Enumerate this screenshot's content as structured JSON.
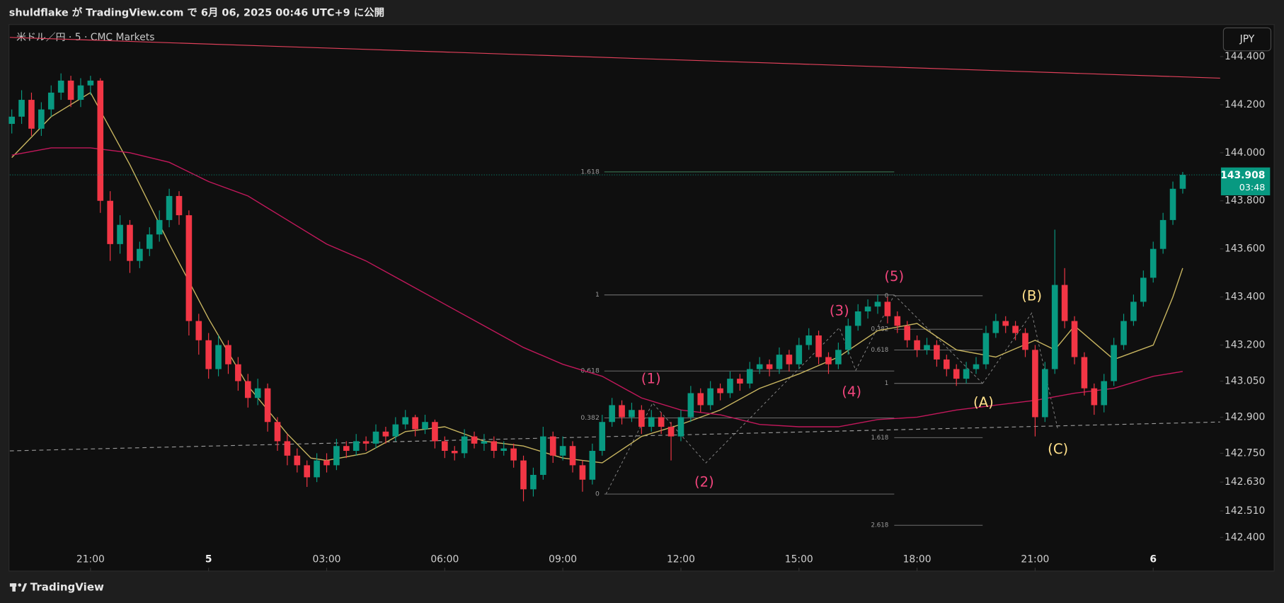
{
  "header": {
    "title": "shuldflake が TradingView.com で 6月 06, 2025 00:46 UTC+9 に公開"
  },
  "footer": {
    "brand": "TradingView"
  },
  "chart_data": {
    "type": "candlestick",
    "symbol": "米ドル／円 · 5 · CMC Markets",
    "currency": "JPY",
    "countdown": "03:48",
    "up_color": "#089981",
    "down_color": "#f23645",
    "xlim": [
      18.95,
      49.7
    ],
    "ylim": [
      142.26,
      144.533
    ],
    "xticks": [
      {
        "value": 21,
        "label": "21:00"
      },
      {
        "value": 24,
        "label": "5"
      },
      {
        "value": 27,
        "label": "03:00"
      },
      {
        "value": 30,
        "label": "06:00"
      },
      {
        "value": 33,
        "label": "09:00"
      },
      {
        "value": 36,
        "label": "12:00"
      },
      {
        "value": 39,
        "label": "15:00"
      },
      {
        "value": 42,
        "label": "18:00"
      },
      {
        "value": 45,
        "label": "21:00"
      },
      {
        "value": 48,
        "label": "6"
      }
    ],
    "yticks": [
      {
        "value": 144.4,
        "label": "144.400"
      },
      {
        "value": 144.2,
        "label": "144.200"
      },
      {
        "value": 144.0,
        "label": "144.000"
      },
      {
        "value": 143.8,
        "label": "143.800"
      },
      {
        "value": 143.6,
        "label": "143.600"
      },
      {
        "value": 143.4,
        "label": "143.400"
      },
      {
        "value": 143.2,
        "label": "143.200"
      },
      {
        "value": 143.05,
        "label": "143.050"
      },
      {
        "value": 142.9,
        "label": "142.900"
      },
      {
        "value": 142.75,
        "label": "142.750"
      },
      {
        "value": 142.63,
        "label": "142.630"
      },
      {
        "value": 142.51,
        "label": "142.510"
      },
      {
        "value": 142.4,
        "label": "142.400"
      }
    ],
    "x": [
      19,
      19.25,
      19.5,
      19.75,
      20,
      20.25,
      20.5,
      20.75,
      21,
      21.25,
      21.5,
      21.75,
      22,
      22.25,
      22.5,
      22.75,
      23,
      23.25,
      23.5,
      23.75,
      24,
      24.25,
      24.5,
      24.75,
      25,
      25.25,
      25.5,
      25.75,
      26,
      26.25,
      26.5,
      26.75,
      27,
      27.25,
      27.5,
      27.75,
      28,
      28.25,
      28.5,
      28.75,
      29,
      29.25,
      29.5,
      29.75,
      30,
      30.25,
      30.5,
      30.75,
      31,
      31.25,
      31.5,
      31.75,
      32,
      32.25,
      32.5,
      32.75,
      33,
      33.25,
      33.5,
      33.75,
      34,
      34.25,
      34.5,
      34.75,
      35,
      35.25,
      35.5,
      35.75,
      36,
      36.25,
      36.5,
      36.75,
      37,
      37.25,
      37.5,
      37.75,
      38,
      38.25,
      38.5,
      38.75,
      39,
      39.25,
      39.5,
      39.75,
      40,
      40.25,
      40.5,
      40.75,
      41,
      41.25,
      41.5,
      41.75,
      42,
      42.25,
      42.5,
      42.75,
      43,
      43.25,
      43.5,
      43.75,
      44,
      44.25,
      44.5,
      44.75,
      45,
      45.25,
      45.5,
      45.75,
      46,
      46.25,
      46.5,
      46.75,
      47,
      47.25,
      47.5,
      47.75,
      48,
      48.25,
      48.5,
      48.75
    ],
    "ohlc": [
      [
        144.12,
        144.18,
        144.08,
        144.15
      ],
      [
        144.15,
        144.26,
        144.12,
        144.22
      ],
      [
        144.22,
        144.25,
        144.07,
        144.1
      ],
      [
        144.1,
        144.21,
        144.07,
        144.18
      ],
      [
        144.18,
        144.28,
        144.15,
        144.25
      ],
      [
        144.25,
        144.33,
        144.22,
        144.3
      ],
      [
        144.3,
        144.32,
        144.19,
        144.22
      ],
      [
        144.22,
        144.31,
        144.19,
        144.28
      ],
      [
        144.28,
        144.32,
        144.24,
        144.3
      ],
      [
        144.3,
        144.31,
        143.75,
        143.8
      ],
      [
        143.8,
        143.84,
        143.55,
        143.62
      ],
      [
        143.62,
        143.74,
        143.58,
        143.7
      ],
      [
        143.7,
        143.72,
        143.5,
        143.55
      ],
      [
        143.55,
        143.63,
        143.52,
        143.6
      ],
      [
        143.6,
        143.69,
        143.57,
        143.66
      ],
      [
        143.66,
        143.76,
        143.63,
        143.72
      ],
      [
        143.72,
        143.85,
        143.69,
        143.82
      ],
      [
        143.82,
        143.84,
        143.7,
        143.74
      ],
      [
        143.74,
        143.76,
        143.24,
        143.3
      ],
      [
        143.3,
        143.33,
        143.16,
        143.22
      ],
      [
        143.22,
        143.25,
        143.06,
        143.1
      ],
      [
        143.1,
        143.24,
        143.07,
        143.2
      ],
      [
        143.2,
        143.22,
        143.08,
        143.12
      ],
      [
        143.12,
        143.15,
        143.01,
        143.05
      ],
      [
        143.05,
        143.08,
        142.94,
        142.98
      ],
      [
        142.98,
        143.06,
        142.95,
        143.02
      ],
      [
        143.02,
        143.04,
        142.84,
        142.88
      ],
      [
        142.88,
        142.9,
        142.76,
        142.8
      ],
      [
        142.8,
        142.83,
        142.7,
        142.74
      ],
      [
        142.74,
        142.77,
        142.67,
        142.7
      ],
      [
        142.7,
        142.72,
        142.61,
        142.65
      ],
      [
        142.65,
        142.75,
        142.63,
        142.72
      ],
      [
        142.72,
        142.75,
        142.67,
        142.7
      ],
      [
        142.7,
        142.81,
        142.68,
        142.78
      ],
      [
        142.78,
        142.8,
        142.73,
        142.76
      ],
      [
        142.76,
        142.83,
        142.74,
        142.8
      ],
      [
        142.8,
        142.82,
        142.76,
        142.79
      ],
      [
        142.79,
        142.87,
        142.77,
        142.84
      ],
      [
        142.84,
        142.86,
        142.79,
        142.82
      ],
      [
        142.82,
        142.9,
        142.8,
        142.87
      ],
      [
        142.87,
        142.93,
        142.85,
        142.9
      ],
      [
        142.9,
        142.91,
        142.82,
        142.85
      ],
      [
        142.85,
        142.91,
        142.83,
        142.88
      ],
      [
        142.88,
        142.89,
        142.77,
        142.8
      ],
      [
        142.8,
        142.82,
        142.73,
        142.76
      ],
      [
        142.76,
        142.78,
        142.72,
        142.75
      ],
      [
        142.75,
        142.85,
        142.73,
        142.82
      ],
      [
        142.82,
        142.84,
        142.77,
        142.79
      ],
      [
        142.79,
        142.83,
        142.76,
        142.8
      ],
      [
        142.8,
        142.82,
        142.73,
        142.76
      ],
      [
        142.76,
        142.8,
        142.74,
        142.77
      ],
      [
        142.77,
        142.79,
        142.69,
        142.72
      ],
      [
        142.72,
        142.74,
        142.55,
        142.6
      ],
      [
        142.6,
        142.69,
        142.57,
        142.66
      ],
      [
        142.66,
        142.86,
        142.64,
        142.82
      ],
      [
        142.82,
        142.84,
        142.71,
        142.74
      ],
      [
        142.74,
        142.82,
        142.72,
        142.78
      ],
      [
        142.78,
        142.8,
        142.67,
        142.7
      ],
      [
        142.7,
        142.72,
        142.59,
        142.64
      ],
      [
        142.64,
        142.79,
        142.62,
        142.76
      ],
      [
        142.76,
        142.91,
        142.74,
        142.88
      ],
      [
        142.88,
        142.98,
        142.86,
        142.95
      ],
      [
        142.95,
        142.97,
        142.87,
        142.9
      ],
      [
        142.9,
        142.96,
        142.88,
        142.93
      ],
      [
        142.93,
        142.95,
        142.83,
        142.86
      ],
      [
        142.86,
        142.93,
        142.84,
        142.9
      ],
      [
        142.9,
        142.92,
        142.83,
        142.86
      ],
      [
        142.86,
        142.88,
        142.72,
        142.82
      ],
      [
        142.82,
        142.93,
        142.8,
        142.9
      ],
      [
        142.9,
        143.03,
        142.88,
        143.0
      ],
      [
        143.0,
        143.02,
        142.92,
        142.95
      ],
      [
        142.95,
        143.05,
        142.93,
        143.02
      ],
      [
        143.02,
        143.04,
        142.97,
        143.0
      ],
      [
        143.0,
        143.09,
        142.98,
        143.06
      ],
      [
        143.06,
        143.08,
        143.01,
        143.04
      ],
      [
        143.04,
        143.13,
        143.02,
        143.1
      ],
      [
        143.1,
        143.15,
        143.08,
        143.12
      ],
      [
        143.12,
        143.14,
        143.07,
        143.1
      ],
      [
        143.1,
        143.19,
        143.08,
        143.16
      ],
      [
        143.16,
        143.18,
        143.09,
        143.12
      ],
      [
        143.12,
        143.23,
        143.1,
        143.2
      ],
      [
        143.2,
        143.27,
        143.18,
        143.24
      ],
      [
        143.24,
        143.26,
        143.12,
        143.15
      ],
      [
        143.15,
        143.17,
        143.08,
        143.12
      ],
      [
        143.12,
        143.21,
        143.1,
        143.18
      ],
      [
        143.18,
        143.31,
        143.16,
        143.28
      ],
      [
        143.28,
        143.37,
        143.26,
        143.34
      ],
      [
        143.34,
        143.39,
        143.31,
        143.36
      ],
      [
        143.36,
        143.41,
        143.33,
        143.38
      ],
      [
        143.38,
        143.4,
        143.29,
        143.32
      ],
      [
        143.32,
        143.34,
        143.25,
        143.28
      ],
      [
        143.28,
        143.3,
        143.19,
        143.22
      ],
      [
        143.22,
        143.24,
        143.15,
        143.18
      ],
      [
        143.18,
        143.23,
        143.16,
        143.2
      ],
      [
        143.2,
        143.22,
        143.11,
        143.14
      ],
      [
        143.14,
        143.16,
        143.07,
        143.1
      ],
      [
        143.1,
        143.12,
        143.03,
        143.06
      ],
      [
        143.06,
        143.13,
        143.04,
        143.1
      ],
      [
        143.1,
        143.15,
        143.08,
        143.12
      ],
      [
        143.12,
        143.28,
        143.1,
        143.25
      ],
      [
        143.25,
        143.33,
        143.23,
        143.3
      ],
      [
        143.3,
        143.32,
        143.25,
        143.28
      ],
      [
        143.28,
        143.3,
        143.22,
        143.25
      ],
      [
        143.25,
        143.27,
        143.15,
        143.18
      ],
      [
        143.18,
        143.2,
        142.82,
        142.9
      ],
      [
        142.9,
        143.13,
        142.88,
        143.1
      ],
      [
        143.1,
        143.68,
        143.08,
        143.45
      ],
      [
        143.45,
        143.52,
        143.27,
        143.3
      ],
      [
        143.3,
        143.32,
        143.12,
        143.15
      ],
      [
        143.15,
        143.17,
        142.99,
        143.02
      ],
      [
        143.02,
        143.04,
        142.91,
        142.95
      ],
      [
        142.95,
        143.08,
        142.92,
        143.05
      ],
      [
        143.05,
        143.23,
        143.03,
        143.2
      ],
      [
        143.2,
        143.33,
        143.18,
        143.3
      ],
      [
        143.3,
        143.41,
        143.28,
        143.38
      ],
      [
        143.38,
        143.51,
        143.36,
        143.48
      ],
      [
        143.48,
        143.63,
        143.46,
        143.6
      ],
      [
        143.6,
        143.75,
        143.58,
        143.72
      ],
      [
        143.72,
        143.88,
        143.7,
        143.85
      ],
      [
        143.85,
        143.92,
        143.83,
        143.908
      ]
    ],
    "lines": [
      {
        "color": "#c8b560",
        "x": [
          19,
          20,
          21,
          22,
          23,
          24,
          25,
          26,
          26.6,
          27,
          28,
          29,
          30,
          31,
          32,
          33,
          34,
          35,
          36,
          37,
          38,
          39,
          40,
          41,
          42,
          43,
          44,
          45,
          45.5,
          46,
          47,
          48,
          48.5,
          48.75
        ],
        "values": [
          143.98,
          144.15,
          144.25,
          143.95,
          143.62,
          143.31,
          143.03,
          142.83,
          142.73,
          142.72,
          142.75,
          142.84,
          142.86,
          142.8,
          142.78,
          142.73,
          142.71,
          142.82,
          142.87,
          142.93,
          143.02,
          143.08,
          143.15,
          143.26,
          143.29,
          143.18,
          143.15,
          143.22,
          143.18,
          143.28,
          143.14,
          143.2,
          143.4,
          143.52
        ]
      },
      {
        "color": "#c2185b",
        "x": [
          19,
          20,
          21,
          22,
          23,
          24,
          25,
          26,
          27,
          28,
          29,
          30,
          31,
          32,
          33,
          34,
          35,
          36,
          37,
          38,
          39,
          40,
          41,
          42,
          43,
          44,
          45,
          46,
          47,
          48,
          48.75
        ],
        "values": [
          143.99,
          144.02,
          144.02,
          144.0,
          143.96,
          143.88,
          143.82,
          143.72,
          143.62,
          143.55,
          143.46,
          143.37,
          143.28,
          143.19,
          143.12,
          143.07,
          142.98,
          142.93,
          142.91,
          142.87,
          142.86,
          142.86,
          142.89,
          142.9,
          142.93,
          142.95,
          142.97,
          143.0,
          143.02,
          143.07,
          143.09
        ]
      }
    ],
    "trendlines": [
      {
        "color": "#e0405a",
        "dash": false,
        "x": [
          18.95,
          49.7
        ],
        "values": [
          144.48,
          144.31
        ]
      },
      {
        "color": "#9a9a9a",
        "dash": true,
        "x": [
          18.95,
          49.7
        ],
        "values": [
          142.76,
          142.88
        ]
      }
    ],
    "fib_left": [
      1.618,
      1,
      0.618,
      0.382,
      0
    ],
    "fib_right": [
      0,
      0.382,
      0.618,
      1,
      1.618,
      2.618
    ],
    "waves": [
      {
        "text": "(1)",
        "color": "#f0457c"
      },
      {
        "text": "(2)",
        "color": "#f0457c"
      },
      {
        "text": "(3)",
        "color": "#f0457c"
      },
      {
        "text": "(4)",
        "color": "#f0457c"
      },
      {
        "text": "(5)",
        "color": "#f0457c"
      },
      {
        "text": "(A)",
        "color": "#ffe08a"
      },
      {
        "text": "(B)",
        "color": "#ffe08a"
      },
      {
        "text": "(C)",
        "color": "#ffe08a"
      }
    ]
  }
}
